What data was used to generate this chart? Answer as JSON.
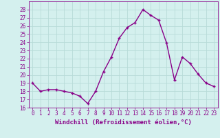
{
  "x": [
    0,
    1,
    2,
    3,
    4,
    5,
    6,
    7,
    8,
    9,
    10,
    11,
    12,
    13,
    14,
    15,
    16,
    17,
    18,
    19,
    20,
    21,
    22,
    23
  ],
  "y": [
    19.0,
    18.0,
    18.2,
    18.2,
    18.0,
    17.8,
    17.4,
    16.5,
    18.0,
    20.4,
    22.2,
    24.5,
    25.8,
    26.4,
    28.0,
    27.3,
    26.7,
    23.9,
    19.4,
    22.2,
    21.4,
    20.1,
    19.0,
    18.6
  ],
  "line_color": "#880088",
  "marker": "+",
  "marker_size": 3.5,
  "marker_linewidth": 1.0,
  "line_width": 1.0,
  "xlabel": "Windchill (Refroidissement éolien,°C)",
  "xlabel_fontsize": 6.5,
  "background_color": "#d4f0ee",
  "grid_color": "#b8dbd8",
  "tick_color": "#880088",
  "label_color": "#880088",
  "ylim": [
    16,
    29
  ],
  "xlim": [
    -0.5,
    23.5
  ],
  "yticks": [
    16,
    17,
    18,
    19,
    20,
    21,
    22,
    23,
    24,
    25,
    26,
    27,
    28
  ],
  "xticks": [
    0,
    1,
    2,
    3,
    4,
    5,
    6,
    7,
    8,
    9,
    10,
    11,
    12,
    13,
    14,
    15,
    16,
    17,
    18,
    19,
    20,
    21,
    22,
    23
  ],
  "xtick_labels": [
    "0",
    "1",
    "2",
    "3",
    "4",
    "5",
    "6",
    "7",
    "8",
    "9",
    "10",
    "11",
    "12",
    "13",
    "14",
    "15",
    "16",
    "17",
    "18",
    "19",
    "20",
    "21",
    "22",
    "23"
  ],
  "tick_fontsize": 5.5
}
